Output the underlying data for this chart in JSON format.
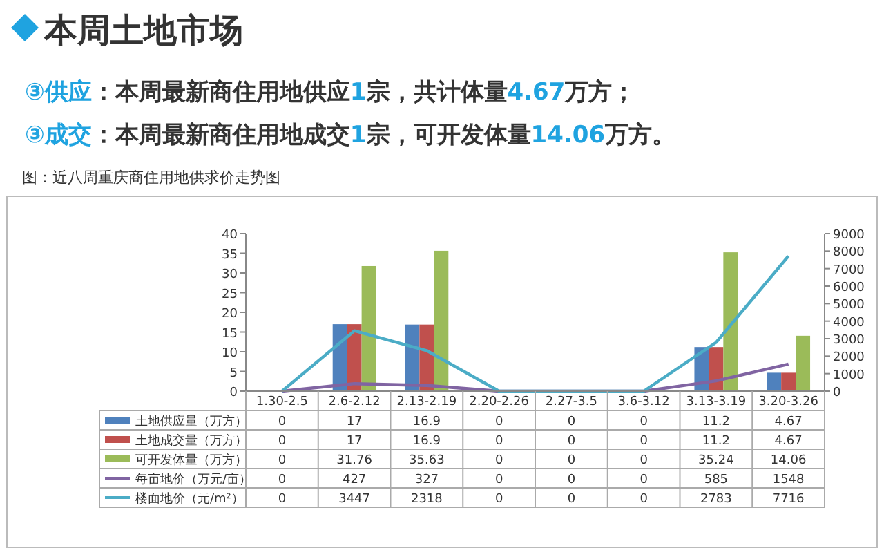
{
  "chart_data": {
    "type": "bar",
    "title": "本周土地市场",
    "annotations": [
      "③供应：本周最新商住用地供应1宗，共计体量4.67万方；",
      "③成交：本周最新商住用地成交1宗，可开发体量14.06万方。",
      "图：近八周重庆商住用地供求价走势图"
    ],
    "categories": [
      "1.30-2.5",
      "2.6-2.12",
      "2.13-2.19",
      "2.20-2.26",
      "2.27-3.5",
      "3.6-3.12",
      "3.13-3.19",
      "3.20-3.26"
    ],
    "series": [
      {
        "name": "土地供应量（万方）",
        "color": "#4f81bd",
        "values": [
          0,
          17,
          16.9,
          0,
          0,
          0,
          11.2,
          4.67
        ]
      },
      {
        "name": "土地成交量（万方）",
        "color": "#c0504d",
        "values": [
          0,
          17,
          16.9,
          0,
          0,
          0,
          11.2,
          4.67
        ]
      },
      {
        "name": "可开发体量（万方）",
        "color": "#9bbb59",
        "values": [
          0,
          31.76,
          35.63,
          0,
          0,
          0,
          35.24,
          14.06
        ]
      },
      {
        "name": "每亩地价（万元/亩）",
        "color": "#8064a2",
        "type": "line",
        "axis": "y2",
        "values": [
          0,
          427,
          327,
          0,
          0,
          0,
          585,
          1548
        ]
      },
      {
        "name": "楼面地价（元/m²）",
        "color": "#4bacc6",
        "type": "line",
        "axis": "y2",
        "values": [
          0,
          3447,
          2318,
          0,
          0,
          0,
          2783,
          7716
        ]
      }
    ],
    "ylim": [
      0,
      40
    ],
    "yticks": [
      0,
      5,
      10,
      15,
      20,
      25,
      30,
      35,
      40
    ],
    "y2lim": [
      0,
      9000
    ],
    "y2ticks": [
      0,
      1000,
      2000,
      3000,
      4000,
      5000,
      6000,
      7000,
      8000,
      9000
    ],
    "grid": false,
    "legend": "bottom",
    "data_labels": true,
    "line_style": "solid"
  }
}
